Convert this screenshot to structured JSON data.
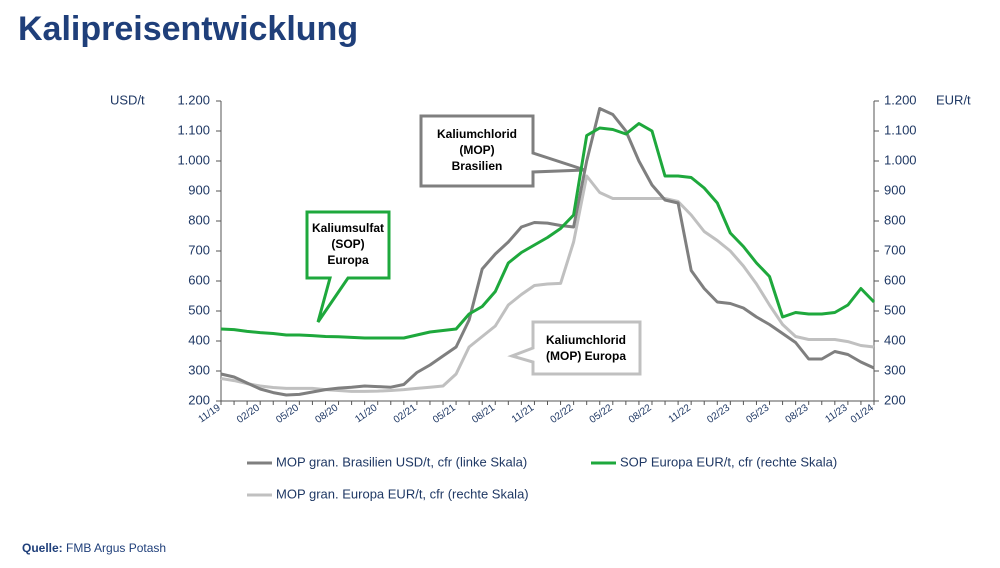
{
  "chart_data": {
    "type": "line",
    "title": "Kalipreisentwicklung",
    "y_label": "USD/t",
    "y2_label": "EUR/t",
    "categories": [
      "11/19",
      null,
      null,
      "02/20",
      null,
      null,
      "05/20",
      null,
      null,
      "08/20",
      null,
      null,
      "11/20",
      null,
      null,
      "02/21",
      null,
      null,
      "05/21",
      null,
      null,
      "08/21",
      null,
      null,
      "11/21",
      null,
      null,
      "02/22",
      null,
      null,
      "05/22",
      null,
      null,
      "08/22",
      null,
      null,
      "11/22",
      null,
      null,
      "02/23",
      null,
      null,
      "05/23",
      null,
      null,
      "08/23",
      null,
      null,
      "11/23",
      null,
      "01/24"
    ],
    "series": [
      {
        "name": "MOP gran. Brasilien USD/t, cfr (linke Skala)",
        "color": "#7f7f7f",
        "axis": "y",
        "values": [
          290,
          280,
          260,
          240,
          228,
          220,
          222,
          230,
          238,
          243,
          246,
          250,
          248,
          246,
          255,
          295,
          320,
          350,
          380,
          470,
          640,
          690,
          730,
          780,
          795,
          793,
          785,
          780,
          1000,
          1175,
          1155,
          1100,
          1000,
          920,
          870,
          860,
          635,
          575,
          530,
          525,
          510,
          480,
          455,
          425,
          395,
          340,
          340,
          365,
          355,
          330,
          310
        ]
      },
      {
        "name": "SOP Europa EUR/t, cfr (rechte Skala)",
        "color": "#1ea83c",
        "axis": "y2",
        "values": [
          440,
          438,
          432,
          428,
          425,
          420,
          420,
          418,
          415,
          414,
          412,
          410,
          410,
          410,
          410,
          420,
          430,
          435,
          440,
          490,
          515,
          565,
          660,
          695,
          720,
          745,
          775,
          820,
          1085,
          1110,
          1105,
          1090,
          1125,
          1100,
          950,
          950,
          945,
          910,
          860,
          760,
          715,
          660,
          615,
          480,
          495,
          490,
          490,
          495,
          520,
          575,
          530
        ]
      },
      {
        "name": "MOP gran. Europa EUR/t, cfr (rechte Skala)",
        "color": "#c0c0c0",
        "axis": "y2",
        "values": [
          275,
          268,
          258,
          250,
          245,
          242,
          242,
          242,
          238,
          235,
          232,
          232,
          233,
          235,
          238,
          242,
          246,
          250,
          290,
          380,
          415,
          450,
          520,
          555,
          585,
          590,
          592,
          730,
          950,
          895,
          875,
          875,
          875,
          875,
          875,
          865,
          820,
          765,
          735,
          700,
          650,
          590,
          520,
          455,
          415,
          405,
          405,
          405,
          398,
          385,
          380
        ]
      }
    ],
    "ylim": [
      200,
      1200
    ],
    "yticks": [
      200,
      300,
      400,
      500,
      600,
      700,
      800,
      900,
      {
        "value": 1000,
        "label": "1.000"
      },
      {
        "value": 1100,
        "label": "1.100"
      },
      {
        "value": 1200,
        "label": "1.200"
      }
    ],
    "y2lim": [
      200,
      1200
    ],
    "y2ticks": [
      200,
      300,
      400,
      500,
      600,
      700,
      800,
      900,
      {
        "value": 1000,
        "label": "1.000"
      },
      {
        "value": 1100,
        "label": "1.100"
      },
      {
        "value": 1200,
        "label": "1.200"
      }
    ],
    "grid": false,
    "legend": "bottom",
    "annotations": [
      {
        "lines": [
          "Kaliumchlorid",
          "(MOP)",
          "Brasilien"
        ]
      },
      {
        "lines": [
          "Kaliumsulfat",
          "(SOP)",
          "Europa"
        ]
      },
      {
        "lines": [
          "Kaliumchlorid",
          "(MOP) Europa"
        ]
      }
    ],
    "source_label": "Quelle:",
    "source": "FMB Argus Potash"
  }
}
